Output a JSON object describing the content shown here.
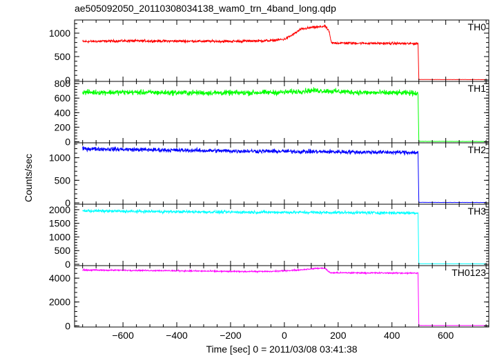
{
  "chart_data": {
    "type": "line",
    "title": "ae505092050_20110308034138_wam0_trn_4band_long.qdp",
    "xlabel": "Time [sec] 0 = 2011/03/08 03:41:38",
    "ylabel": "Counts/sec",
    "xlim": [
      -780,
      760
    ],
    "x_ticks": [
      -600,
      -400,
      -200,
      0,
      200,
      400,
      600
    ],
    "x_tick_labels": [
      "−600",
      "−400",
      "−200",
      "0",
      "200",
      "400",
      "600"
    ],
    "grid": false,
    "panels": [
      {
        "name": "TH0",
        "color": "#ff0000",
        "ylim": [
          -30,
          1280
        ],
        "y_ticks": [
          0,
          500,
          1000
        ],
        "y_tick_labels": [
          "0",
          "500",
          "1000"
        ],
        "noise": 22,
        "points": [
          [
            -750,
            820
          ],
          [
            -600,
            835
          ],
          [
            -400,
            830
          ],
          [
            -200,
            825
          ],
          [
            -50,
            840
          ],
          [
            0,
            870
          ],
          [
            30,
            960
          ],
          [
            60,
            1080
          ],
          [
            100,
            1120
          ],
          [
            130,
            1130
          ],
          [
            150,
            1150
          ],
          [
            165,
            1060
          ],
          [
            175,
            790
          ],
          [
            300,
            785
          ],
          [
            497,
            775
          ],
          [
            500,
            10
          ],
          [
            750,
            8
          ]
        ]
      },
      {
        "name": "TH1",
        "color": "#00ff00",
        "ylim": [
          -15,
          830
        ],
        "y_ticks": [
          0,
          200,
          400,
          600,
          800
        ],
        "y_tick_labels": [
          "0",
          "200",
          "400",
          "600",
          "800"
        ],
        "noise": 30,
        "points": [
          [
            -750,
            680
          ],
          [
            -600,
            680
          ],
          [
            -400,
            675
          ],
          [
            -200,
            672
          ],
          [
            0,
            680
          ],
          [
            100,
            705
          ],
          [
            150,
            700
          ],
          [
            300,
            675
          ],
          [
            497,
            670
          ],
          [
            500,
            5
          ],
          [
            750,
            3
          ]
        ]
      },
      {
        "name": "TH2",
        "color": "#0000ff",
        "ylim": [
          -30,
          1330
        ],
        "y_ticks": [
          0,
          500,
          1000
        ],
        "y_tick_labels": [
          "0",
          "500",
          "1000"
        ],
        "noise": 38,
        "points": [
          [
            -750,
            1200
          ],
          [
            -600,
            1185
          ],
          [
            -400,
            1165
          ],
          [
            -200,
            1150
          ],
          [
            0,
            1140
          ],
          [
            200,
            1130
          ],
          [
            400,
            1120
          ],
          [
            497,
            1115
          ],
          [
            500,
            10
          ],
          [
            750,
            8
          ]
        ]
      },
      {
        "name": "TH3",
        "color": "#00ffff",
        "ylim": [
          -50,
          2200
        ],
        "y_ticks": [
          0,
          500,
          1000,
          1500,
          2000
        ],
        "y_tick_labels": [
          "0",
          "500",
          "1000",
          "1500",
          "2000"
        ],
        "noise": 45,
        "points": [
          [
            -750,
            1960
          ],
          [
            -600,
            1940
          ],
          [
            -400,
            1925
          ],
          [
            -200,
            1910
          ],
          [
            0,
            1905
          ],
          [
            200,
            1895
          ],
          [
            400,
            1885
          ],
          [
            497,
            1880
          ],
          [
            500,
            20
          ],
          [
            750,
            15
          ]
        ]
      },
      {
        "name": "TH0123",
        "color": "#ff00ff",
        "ylim": [
          -100,
          5050
        ],
        "y_ticks": [
          0,
          2000,
          4000
        ],
        "y_tick_labels": [
          "0",
          "2000",
          "4000"
        ],
        "noise": 45,
        "points": [
          [
            -750,
            4680
          ],
          [
            -600,
            4660
          ],
          [
            -400,
            4620
          ],
          [
            -200,
            4560
          ],
          [
            -50,
            4560
          ],
          [
            50,
            4680
          ],
          [
            120,
            4820
          ],
          [
            150,
            4840
          ],
          [
            170,
            4450
          ],
          [
            300,
            4440
          ],
          [
            497,
            4420
          ],
          [
            500,
            35
          ],
          [
            750,
            30
          ]
        ]
      }
    ]
  }
}
